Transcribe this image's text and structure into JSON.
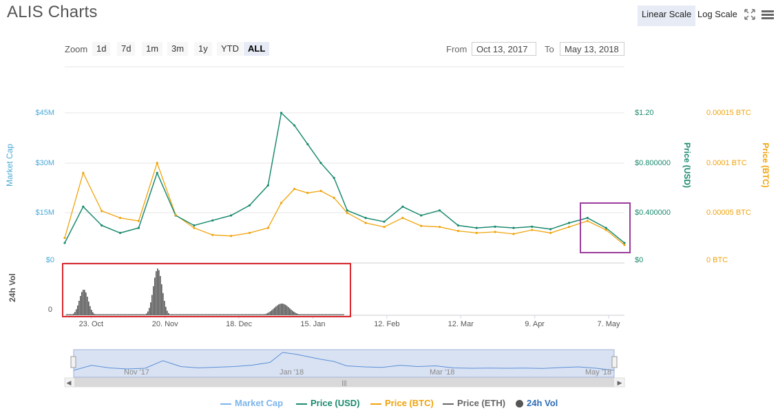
{
  "title": "ALIS Charts",
  "scale_options": {
    "linear": "Linear Scale",
    "log": "Log Scale"
  },
  "zoom": {
    "label": "Zoom",
    "buttons": [
      "1d",
      "7d",
      "1m",
      "3m",
      "1y",
      "YTD",
      "ALL"
    ],
    "selected": "ALL"
  },
  "range": {
    "from_label": "From",
    "from_value": "Oct 13, 2017",
    "to_label": "To",
    "to_value": "May 13, 2018"
  },
  "axes": {
    "left_title": "Market Cap",
    "left_ticks": [
      "$45M",
      "$30M",
      "$15M",
      "$0"
    ],
    "usd_title": "Price (USD)",
    "usd_ticks": [
      "$1.20",
      "$0.800000",
      "$0.400000",
      "$0"
    ],
    "btc_title": "Price (BTC)",
    "btc_ticks": [
      "0.00015 BTC",
      "0.0001 BTC",
      "0.00005 BTC",
      "0 BTC"
    ],
    "vol_title": "24h Vol",
    "vol_tick": "0",
    "x_ticks": [
      "23. Oct",
      "20. Nov",
      "18. Dec",
      "15. Jan",
      "12. Feb",
      "12. Mar",
      "9. Apr",
      "7. May"
    ],
    "nav_ticks": [
      "Nov '17",
      "Jan '18",
      "Mar '18",
      "May '18"
    ]
  },
  "legend": [
    {
      "label": "Market Cap",
      "color": "#7cb5ec",
      "kind": "line"
    },
    {
      "label": "Price (USD)",
      "color": "#1a8a6e",
      "kind": "line"
    },
    {
      "label": "Price (BTC)",
      "color": "#f0a30a",
      "kind": "line"
    },
    {
      "label": "Price (ETH)",
      "color": "#666666",
      "kind": "line"
    },
    {
      "label": "24h Vol",
      "color": "#555555",
      "kind": "dot"
    }
  ],
  "colors": {
    "usd": "#1a8a6e",
    "btc": "#f0a30a",
    "cap": "#7cb5ec",
    "vol": "#555555",
    "highlight_red": "#d9262c",
    "highlight_purple": "#9b3b9c"
  },
  "chart_data": {
    "type": "line",
    "x_dates": [
      "2017-10-13",
      "2017-10-20",
      "2017-10-27",
      "2017-11-03",
      "2017-11-10",
      "2017-11-17",
      "2017-11-24",
      "2017-12-01",
      "2017-12-08",
      "2017-12-15",
      "2017-12-22",
      "2017-12-29",
      "2018-01-03",
      "2018-01-08",
      "2018-01-13",
      "2018-01-18",
      "2018-01-23",
      "2018-01-28",
      "2018-02-04",
      "2018-02-11",
      "2018-02-18",
      "2018-02-25",
      "2018-03-04",
      "2018-03-11",
      "2018-03-18",
      "2018-03-25",
      "2018-04-01",
      "2018-04-08",
      "2018-04-15",
      "2018-04-22",
      "2018-04-29",
      "2018-05-06",
      "2018-05-13"
    ],
    "series": [
      {
        "name": "Price (USD)",
        "axis": "usd",
        "values": [
          0.16,
          0.45,
          0.3,
          0.24,
          0.28,
          0.72,
          0.38,
          0.3,
          0.34,
          0.38,
          0.46,
          0.62,
          1.2,
          1.1,
          0.95,
          0.8,
          0.68,
          0.42,
          0.36,
          0.33,
          0.45,
          0.38,
          0.42,
          0.3,
          0.28,
          0.29,
          0.28,
          0.29,
          0.27,
          0.32,
          0.36,
          0.28,
          0.16
        ]
      },
      {
        "name": "Price (BTC)",
        "axis": "btc",
        "values": [
          2.5e-05,
          9e-05,
          5.2e-05,
          4.5e-05,
          4.2e-05,
          0.0001,
          4.8e-05,
          3.5e-05,
          2.8e-05,
          2.7e-05,
          3e-05,
          3.5e-05,
          6e-05,
          7.4e-05,
          7e-05,
          7.2e-05,
          6.5e-05,
          5e-05,
          4e-05,
          3.6e-05,
          4.5e-05,
          3.7e-05,
          3.6e-05,
          3.2e-05,
          3e-05,
          3.1e-05,
          2.9e-05,
          3.3e-05,
          3e-05,
          3.6e-05,
          4.2e-05,
          3.3e-05,
          1.8e-05
        ]
      }
    ],
    "volume_peaks": [
      {
        "date": "2017-10-20",
        "relative": 0.55
      },
      {
        "date": "2017-11-17",
        "relative": 1.0
      },
      {
        "date": "2018-01-03",
        "relative": 0.25
      }
    ],
    "ylim_usd": [
      0,
      1.2
    ],
    "ylim_btc": [
      0,
      0.00015
    ],
    "ylim_market_cap": [
      0,
      45000000
    ]
  }
}
